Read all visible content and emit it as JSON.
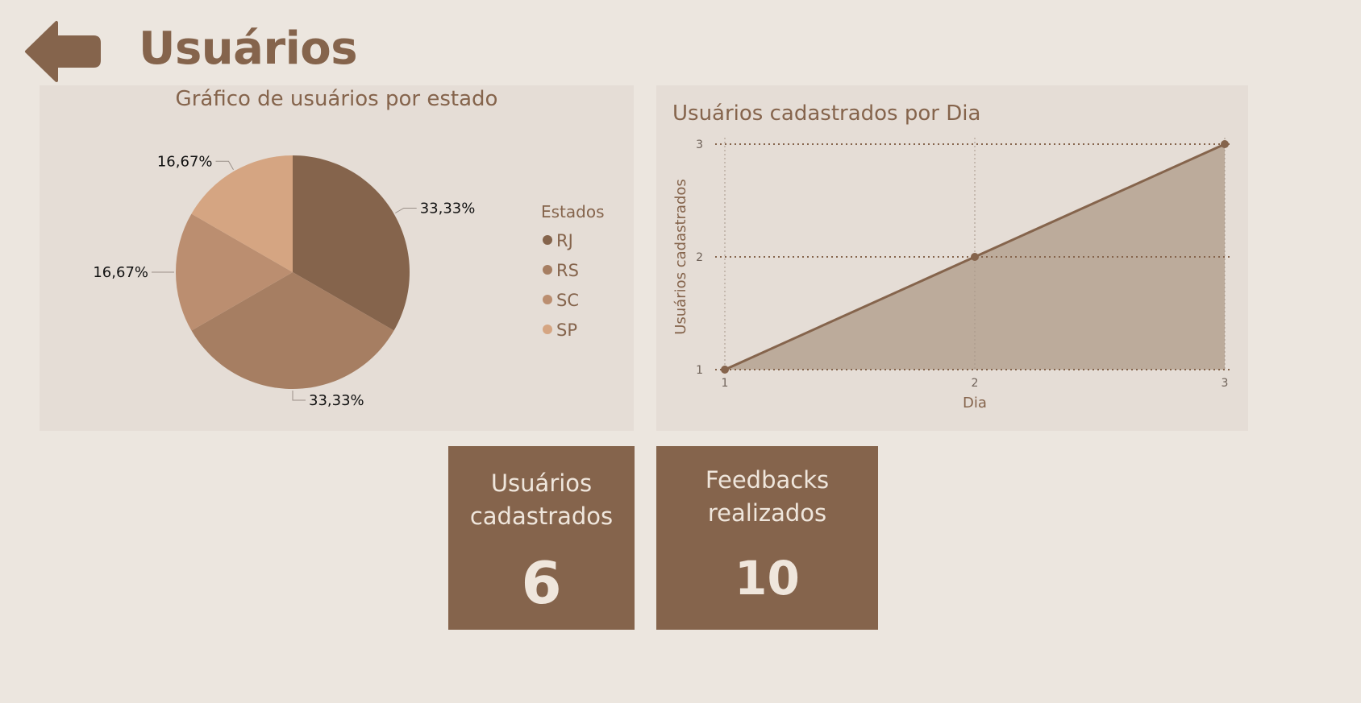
{
  "header": {
    "title": "Usuários",
    "back_icon": "arrow-left-icon"
  },
  "colors": {
    "brand": "#85644c",
    "background": "#ece6df",
    "panel": "#e5ddd6",
    "area_fill": "#bcab9b"
  },
  "pie_panel": {
    "title": "Gráfico de usuários por estado"
  },
  "line_panel": {
    "title": "Usuários cadastrados por Dia"
  },
  "chart_data": [
    {
      "type": "pie",
      "title": "Gráfico de usuários por estado",
      "legend_title": "Estados",
      "legend_position": "right",
      "slices": [
        {
          "name": "RJ",
          "value": 33.33,
          "label": "33,33%",
          "color": "#85644c"
        },
        {
          "name": "RS",
          "value": 33.33,
          "label": "33,33%",
          "color": "#a67e62"
        },
        {
          "name": "SC",
          "value": 16.67,
          "label": "16,67%",
          "color": "#bb8e70"
        },
        {
          "name": "SP",
          "value": 16.67,
          "label": "16,67%",
          "color": "#d5a582"
        }
      ]
    },
    {
      "type": "area",
      "title": "Usuários cadastrados por Dia",
      "xlabel": "Dia",
      "ylabel": "Usuários cadastrados",
      "x": [
        1,
        2,
        3
      ],
      "y": [
        1,
        2,
        3
      ],
      "xticks": [
        "1",
        "2",
        "3"
      ],
      "yticks": [
        "1",
        "2",
        "3"
      ],
      "xlim": [
        1,
        3
      ],
      "ylim": [
        1,
        3
      ],
      "grid": true,
      "line_color": "#85644c",
      "fill_color": "#bcab9b"
    }
  ],
  "kpis": {
    "users": {
      "label_line1": "Usuários",
      "label_line2": "cadastrados",
      "value": "6"
    },
    "feedbacks": {
      "label_line1": "Feedbacks",
      "label_line2": "realizados",
      "value": "10"
    }
  }
}
